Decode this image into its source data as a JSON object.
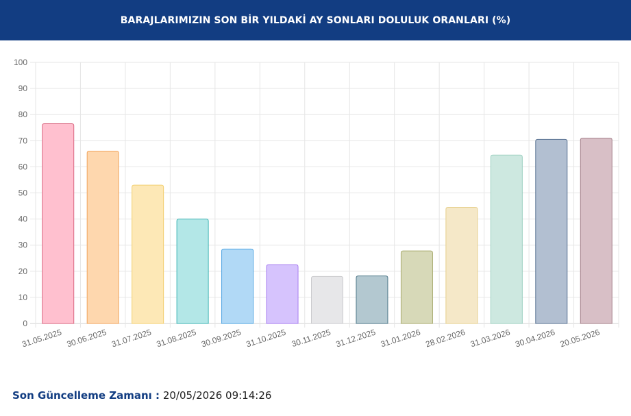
{
  "header": {
    "title": "BARAJLARIMIZIN SON BİR YILDAKİ AY SONLARI DOLULUK ORANLARI (%)"
  },
  "footer": {
    "label": "Son Güncelleme Zamanı :",
    "value": "20/05/2026 09:14:26"
  },
  "chart_data": {
    "type": "bar",
    "title": "BARAJLARIMIZIN SON BİR YILDAKİ AY SONLARI DOLULUK ORANLARI (%)",
    "categories": [
      "31.05.2025",
      "30.06.2025",
      "31.07.2025",
      "31.08.2025",
      "30.09.2025",
      "31.10.2025",
      "30.11.2025",
      "31.12.2025",
      "31.01.2026",
      "28.02.2026",
      "31.03.2026",
      "30.04.2026",
      "20.05.2026"
    ],
    "values": [
      76.5,
      66.0,
      53.0,
      40.0,
      28.5,
      22.5,
      18.0,
      18.2,
      27.8,
      44.5,
      64.5,
      70.5,
      71.0
    ],
    "fills": [
      "#ffc0cf",
      "#fed7ae",
      "#fde8b6",
      "#b3e7e7",
      "#b1d9f6",
      "#d6c3fd",
      "#e7e7e9",
      "#b3c8d0",
      "#d7d9b8",
      "#f5e8c8",
      "#cde8e0",
      "#b2bfd1",
      "#d8bfc6"
    ],
    "strokes": [
      "#d9657f",
      "#f0a35c",
      "#f3cf6f",
      "#3fb4b4",
      "#4ea4e1",
      "#a67bf0",
      "#cacacd",
      "#4d7788",
      "#a8ab6e",
      "#e6cf8c",
      "#9ccfc0",
      "#5a7392",
      "#a5818b"
    ],
    "ylim": [
      0,
      100
    ],
    "yticks": [
      0,
      10,
      20,
      30,
      40,
      50,
      60,
      70,
      80,
      90,
      100
    ],
    "xlabel": "",
    "ylabel": "",
    "grid": true,
    "legend": "none"
  }
}
